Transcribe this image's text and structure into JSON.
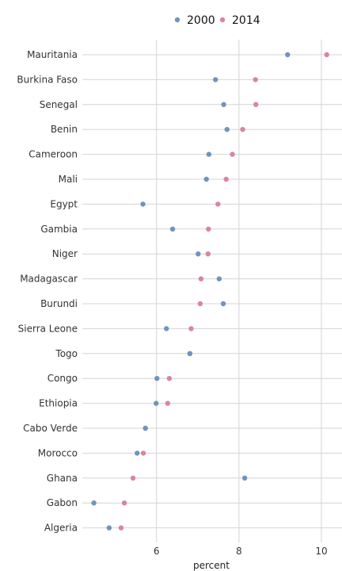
{
  "chart_data": {
    "type": "dot",
    "xlabel": "percent",
    "xlim": [
      4.2,
      10.5
    ],
    "xticks": [
      6,
      8,
      10
    ],
    "legend_position": "top",
    "grid": true,
    "colors": {
      "2000": "#6f94c0",
      "2014": "#d8869c",
      "grid": "#d4d4d4"
    },
    "categories": [
      "Mauritania",
      "Burkina Faso",
      "Senegal",
      "Benin",
      "Cameroon",
      "Mali",
      "Egypt",
      "Gambia",
      "Niger",
      "Madagascar",
      "Burundi",
      "Sierra Leone",
      "Togo",
      "Congo",
      "Ethiopia",
      "Cabo Verde",
      "Morocco",
      "Ghana",
      "Gabon",
      "Algeria"
    ],
    "series": [
      {
        "name": "2000",
        "values": [
          9.18,
          7.43,
          7.63,
          7.71,
          7.27,
          7.21,
          5.67,
          6.39,
          7.01,
          7.52,
          7.62,
          6.24,
          6.81,
          6.01,
          5.99,
          5.73,
          5.53,
          8.14,
          4.48,
          4.85
        ]
      },
      {
        "name": "2014",
        "values": [
          10.13,
          8.4,
          8.41,
          8.09,
          7.84,
          7.69,
          7.49,
          7.26,
          7.25,
          7.08,
          7.06,
          6.84,
          6.81,
          6.31,
          6.27,
          5.73,
          5.68,
          5.43,
          5.22,
          5.14
        ]
      }
    ]
  }
}
